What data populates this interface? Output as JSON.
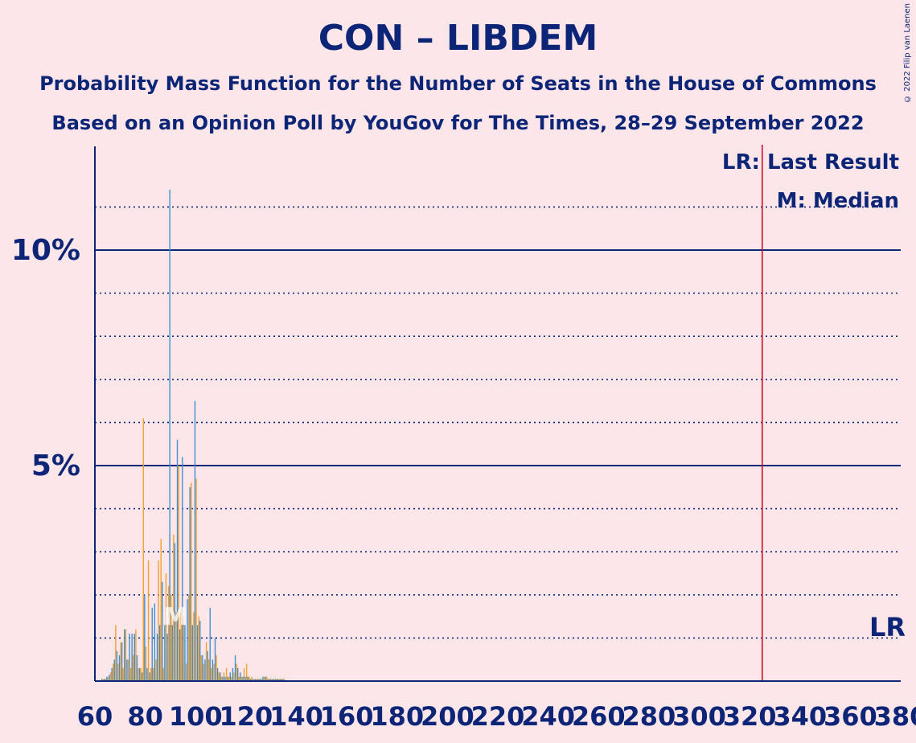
{
  "header": {
    "title": "CON – LIBDEM",
    "subtitle1": "Probability Mass Function for the Number of Seats in the House of Commons",
    "subtitle2": "Based on an Opinion Poll by YouGov for The Times, 28–29 September 2022",
    "copyright": "© 2022 Filip van Laenen"
  },
  "legend": {
    "lr": "LR: Last Result",
    "m": "M: Median",
    "lr_short": "LR",
    "m_short": "M"
  },
  "colors": {
    "background": "#fde6ea",
    "text": "#0c2577",
    "blue_series": "#3f8fd0",
    "orange_series": "#f0a030",
    "last_result_line": "#c8102e"
  },
  "chart_data": {
    "type": "bar",
    "xlim": [
      60,
      380
    ],
    "ylim": [
      0,
      12.4
    ],
    "x_ticks": [
      60,
      80,
      100,
      120,
      140,
      160,
      180,
      200,
      220,
      240,
      260,
      280,
      300,
      320,
      340,
      360,
      380
    ],
    "y_major_ticks": [
      {
        "value": 5,
        "label": "5%"
      },
      {
        "value": 10,
        "label": "10%"
      }
    ],
    "y_minor_gridlines": [
      1,
      2,
      3,
      4,
      6,
      7,
      8,
      9,
      11
    ],
    "last_result": 325,
    "median": 92,
    "median_y": 1.6,
    "series": [
      {
        "name": "blue",
        "x": [
          63,
          64,
          65,
          66,
          67,
          68,
          69,
          70,
          71,
          72,
          73,
          74,
          75,
          76,
          77,
          78,
          79,
          80,
          81,
          82,
          83,
          84,
          85,
          86,
          87,
          88,
          89,
          90,
          91,
          92,
          93,
          94,
          95,
          96,
          97,
          98,
          99,
          100,
          101,
          102,
          103,
          104,
          105,
          106,
          107,
          108,
          109,
          110,
          111,
          112,
          113,
          114,
          115,
          116,
          117,
          118,
          119,
          120,
          121,
          122,
          123,
          124,
          125,
          126,
          127,
          128,
          129,
          130,
          131,
          132,
          133,
          134,
          135
        ],
        "values": [
          0.05,
          0.05,
          0.1,
          0.15,
          0.3,
          0.5,
          0.7,
          0.6,
          0.9,
          1.2,
          0.5,
          1.1,
          1.1,
          1.1,
          0.6,
          0.3,
          0.2,
          2.0,
          0.3,
          0.2,
          1.7,
          1.8,
          1.1,
          1.3,
          2.3,
          1.3,
          1.1,
          11.4,
          1.3,
          3.2,
          5.6,
          1.2,
          5.2,
          1.3,
          1.9,
          4.5,
          1.3,
          6.5,
          1.3,
          1.4,
          0.6,
          0.5,
          0.7,
          1.7,
          0.5,
          1.0,
          0.3,
          0.2,
          0.1,
          0.1,
          0.1,
          0.2,
          0.3,
          0.6,
          0.3,
          0.2,
          0.1,
          0.1,
          0.1,
          0.05,
          0.05,
          0.05,
          0.05,
          0.05,
          0.1,
          0.1,
          0.05,
          0.05,
          0.05,
          0.05,
          0.05,
          0.05,
          0.05
        ]
      },
      {
        "name": "orange",
        "x": [
          63,
          64,
          65,
          66,
          67,
          68,
          69,
          70,
          71,
          72,
          73,
          74,
          75,
          76,
          77,
          78,
          79,
          80,
          81,
          82,
          83,
          84,
          85,
          86,
          87,
          88,
          89,
          90,
          91,
          92,
          93,
          94,
          95,
          96,
          97,
          98,
          99,
          100,
          101,
          102,
          103,
          104,
          105,
          106,
          107,
          108,
          109,
          110,
          111,
          112,
          113,
          114,
          115,
          116,
          117,
          118,
          119,
          120,
          121,
          122,
          123,
          124,
          125,
          126,
          127,
          128,
          129,
          130,
          131,
          132,
          133,
          134,
          135
        ],
        "values": [
          0.05,
          0.05,
          0.1,
          0.2,
          0.4,
          1.3,
          0.4,
          0.9,
          0.3,
          1.2,
          0.5,
          0.3,
          0.6,
          1.2,
          0.3,
          0.3,
          6.1,
          0.8,
          2.8,
          0.3,
          0.3,
          0.5,
          2.8,
          3.3,
          0.3,
          2.5,
          2.2,
          2.0,
          3.4,
          1.6,
          5.0,
          1.7,
          1.5,
          0.4,
          2.0,
          4.6,
          1.6,
          4.7,
          1.5,
          0.6,
          0.4,
          0.9,
          0.5,
          0.3,
          0.4,
          0.6,
          0.2,
          0.1,
          0.2,
          0.3,
          0.1,
          0.1,
          0.2,
          0.4,
          0.1,
          0.1,
          0.3,
          0.4,
          0.1,
          0.1,
          0.05,
          0.05,
          0.05,
          0.05,
          0.1,
          0.1,
          0.05,
          0.05,
          0.05,
          0.05,
          0.05,
          0.05,
          0.05
        ]
      }
    ]
  }
}
